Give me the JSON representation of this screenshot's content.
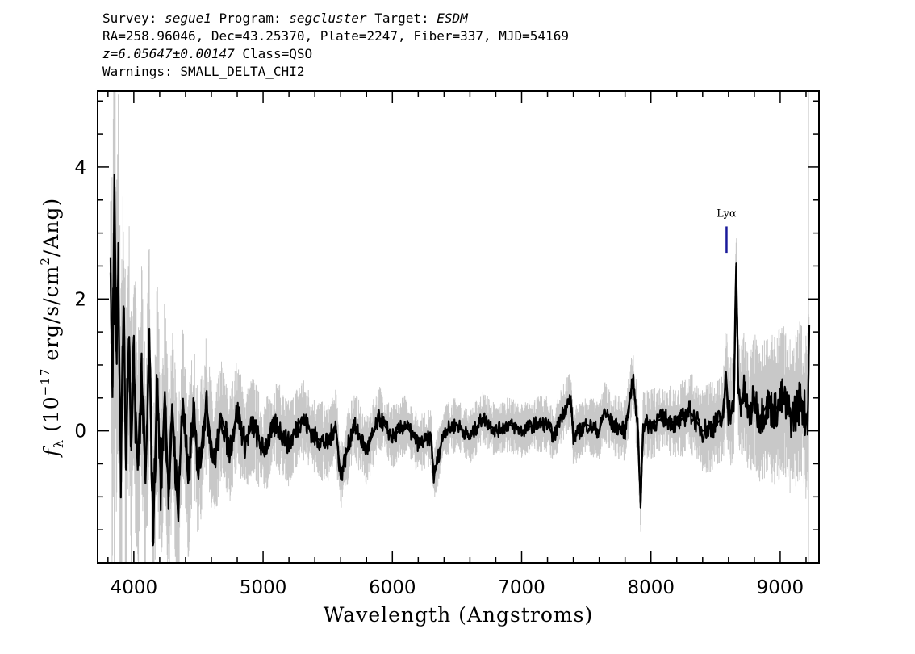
{
  "header": {
    "survey_label": "Survey:",
    "survey": "segue1",
    "program_label": "Program:",
    "program": "segcluster",
    "target_label": "Target:",
    "target": "ESDM",
    "coords": "RA=258.96046, Dec=43.25370, Plate=2247, Fiber=337, MJD=54169",
    "redshift": "z=6.05647±0.00147",
    "class": "Class=QSO",
    "warnings": "Warnings: SMALL_DELTA_CHI2"
  },
  "chart_data": {
    "type": "line",
    "xlabel": "Wavelength (Angstroms)",
    "ylabel_prefix": "f",
    "ylabel_sub": "λ",
    "ylabel_open": " (10",
    "ylabel_exp": "−17",
    "ylabel_mid": " erg/s/cm",
    "ylabel_sq": "2",
    "ylabel_close": "/Ang)",
    "xlim": [
      3720,
      9300
    ],
    "ylim": [
      -2.0,
      5.15
    ],
    "xticks": [
      4000,
      5000,
      6000,
      7000,
      8000,
      9000
    ],
    "xtick_labels": [
      "4000",
      "5000",
      "6000",
      "7000",
      "8000",
      "9000"
    ],
    "yticks": [
      0,
      2,
      4
    ],
    "ytick_labels": [
      "0",
      "2",
      "4"
    ],
    "x_minor_step": 200,
    "y_minor_step": 0.5,
    "grid": false,
    "series": [
      {
        "role": "flux",
        "color": "#000000",
        "x": [
          3820,
          3835,
          3850,
          3865,
          3880,
          3900,
          3920,
          3940,
          3960,
          3980,
          4000,
          4030,
          4060,
          4090,
          4120,
          4150,
          4180,
          4210,
          4240,
          4270,
          4300,
          4340,
          4380,
          4420,
          4460,
          4500,
          4560,
          4620,
          4680,
          4740,
          4800,
          4860,
          4920,
          5000,
          5100,
          5200,
          5300,
          5400,
          5500,
          5560,
          5600,
          5700,
          5800,
          5900,
          6000,
          6100,
          6200,
          6300,
          6320,
          6400,
          6500,
          6600,
          6700,
          6800,
          6900,
          7000,
          7100,
          7200,
          7250,
          7300,
          7380,
          7400,
          7500,
          7600,
          7640,
          7700,
          7800,
          7860,
          7900,
          7920,
          7940,
          8000,
          8100,
          8200,
          8300,
          8400,
          8500,
          8560,
          8580,
          8600,
          8640,
          8660,
          8675,
          8690,
          8720,
          8760,
          8800,
          8840,
          8900,
          8960,
          9020,
          9080,
          9120,
          9160,
          9200,
          9215,
          9225
        ],
        "values": [
          2.4,
          0.5,
          3.9,
          1.2,
          2.4,
          -0.7,
          1.9,
          -0.5,
          1.4,
          -0.3,
          1.0,
          -0.6,
          0.9,
          -0.8,
          1.3,
          -1.6,
          0.8,
          -0.9,
          0.6,
          -1.0,
          0.3,
          -1.2,
          0.5,
          -0.8,
          0.3,
          -0.6,
          0.4,
          -0.5,
          0.2,
          -0.3,
          0.3,
          -0.2,
          0.1,
          -0.3,
          0.1,
          -0.2,
          0.2,
          -0.1,
          -0.2,
          0.1,
          -0.7,
          0.1,
          -0.3,
          0.2,
          -0.1,
          0.1,
          -0.2,
          -0.1,
          -0.7,
          0.0,
          0.1,
          -0.1,
          0.2,
          0.0,
          0.1,
          0.0,
          0.1,
          0.1,
          -0.1,
          0.2,
          0.5,
          -0.1,
          0.1,
          0.0,
          0.3,
          0.1,
          0.0,
          0.8,
          0.0,
          -1.1,
          0.1,
          0.1,
          0.2,
          0.1,
          0.3,
          0.0,
          0.1,
          0.2,
          0.9,
          0.3,
          0.3,
          2.5,
          0.7,
          0.4,
          0.6,
          0.2,
          0.5,
          0.2,
          0.4,
          0.3,
          0.5,
          0.2,
          0.3,
          0.5,
          0.2,
          0.3,
          1.6
        ]
      },
      {
        "role": "error",
        "color": "#c8c8c8",
        "x": [
          3820,
          3850,
          3880,
          3920,
          3960,
          4000,
          4060,
          4120,
          4180,
          4250,
          4320,
          4400,
          4500,
          4600,
          4700,
          4800,
          4900,
          5000,
          5200,
          5400,
          5600,
          5800,
          6000,
          6300,
          6600,
          7000,
          7400,
          7800,
          8200,
          8500,
          8700,
          8900,
          9100,
          9225
        ],
        "values": [
          1.8,
          1.5,
          1.3,
          1.1,
          1.0,
          0.95,
          0.85,
          0.8,
          0.75,
          0.7,
          0.65,
          0.6,
          0.5,
          0.45,
          0.4,
          0.38,
          0.35,
          0.33,
          0.3,
          0.28,
          0.26,
          0.24,
          0.22,
          0.2,
          0.19,
          0.19,
          0.2,
          0.22,
          0.26,
          0.32,
          0.42,
          0.5,
          0.55,
          0.6
        ]
      }
    ],
    "annotations": [
      {
        "label": "Lyα",
        "x": 8585,
        "y_line": [
          2.7,
          3.1
        ],
        "color": "#1a1a9a"
      }
    ],
    "vlines": [
      {
        "x": 3850,
        "color": "#c8c8c8"
      },
      {
        "x": 9218,
        "color": "#c8c8c8"
      }
    ]
  }
}
